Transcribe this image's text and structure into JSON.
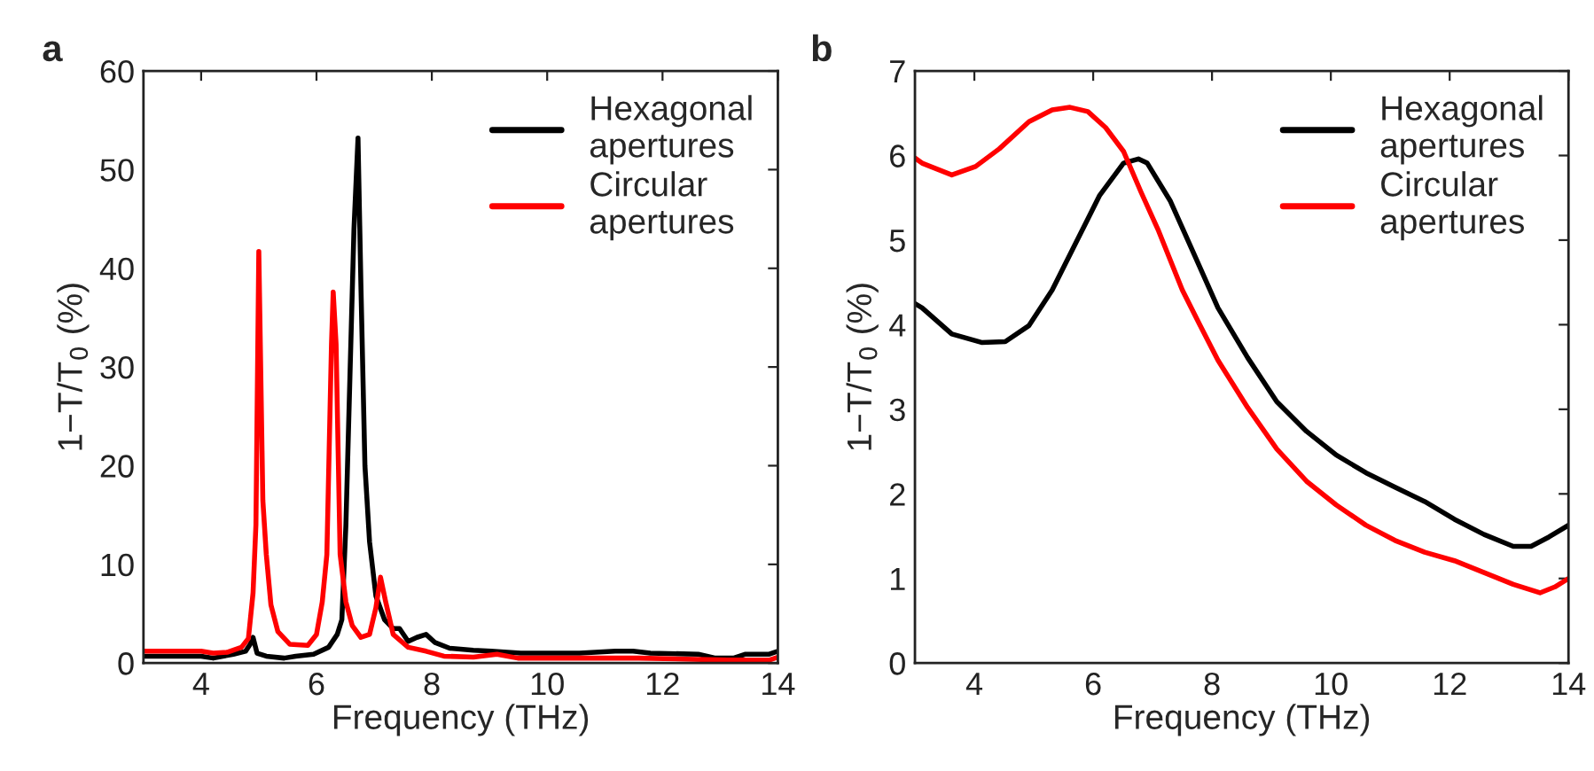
{
  "chart_data": [
    {
      "type": "line",
      "title": "a",
      "xlabel": "Frequency (THz)",
      "ylabel": "1−T/T$_{0}$ (%)",
      "xlim": [
        3,
        14
      ],
      "xticks": [
        4,
        6,
        8,
        10,
        12,
        14
      ],
      "ylim": [
        0,
        60
      ],
      "yticks": [
        0,
        10,
        20,
        30,
        40,
        50,
        60
      ],
      "grid": false,
      "legend": "top right",
      "line_style": "solid",
      "marker": "none",
      "series": [
        {
          "name": "Hexagonal\napertures",
          "color": "#000000",
          "x": [
            3.0,
            4.0,
            4.21,
            4.56,
            4.77,
            4.85,
            4.9,
            4.97,
            5.13,
            5.44,
            5.64,
            5.95,
            6.21,
            6.36,
            6.44,
            6.51,
            6.58,
            6.65,
            6.72,
            6.77,
            6.84,
            6.92,
            7.03,
            7.18,
            7.33,
            7.44,
            7.59,
            7.74,
            7.9,
            8.05,
            8.31,
            8.72,
            9.03,
            9.54,
            10.56,
            11.18,
            11.49,
            11.79,
            12.62,
            12.92,
            13.23,
            13.44,
            13.85,
            14.0
          ],
          "values": [
            0.7,
            0.7,
            0.5,
            0.9,
            1.2,
            1.9,
            2.6,
            1.0,
            0.7,
            0.5,
            0.7,
            0.9,
            1.6,
            2.9,
            4.4,
            14,
            29,
            44,
            53.2,
            38.4,
            20,
            12.3,
            6.8,
            4.4,
            3.5,
            3.5,
            2.2,
            2.6,
            2.9,
            2.1,
            1.5,
            1.3,
            1.2,
            1.0,
            1.0,
            1.2,
            1.2,
            1.0,
            0.9,
            0.5,
            0.5,
            0.9,
            0.9,
            1.2
          ]
        },
        {
          "name": "Circular\napertures",
          "color": "#ff0000",
          "x": [
            3.0,
            4.0,
            4.21,
            4.46,
            4.7,
            4.82,
            4.9,
            4.95,
            5.0,
            5.07,
            5.13,
            5.21,
            5.33,
            5.54,
            5.85,
            6.0,
            6.1,
            6.18,
            6.26,
            6.29,
            6.34,
            6.41,
            6.51,
            6.62,
            6.77,
            6.92,
            7.03,
            7.11,
            7.2,
            7.33,
            7.59,
            7.9,
            8.21,
            8.72,
            9.13,
            9.49,
            10.05,
            11.59,
            13.13,
            13.85,
            14.0
          ],
          "values": [
            1.2,
            1.2,
            1.0,
            1.1,
            1.6,
            2.5,
            7.1,
            14,
            41.7,
            16.5,
            11,
            5.9,
            3.2,
            1.9,
            1.8,
            2.9,
            6.2,
            11,
            32.3,
            37.6,
            32.3,
            11,
            6.2,
            3.8,
            2.6,
            2.9,
            5.6,
            8.7,
            6.2,
            2.9,
            1.6,
            1.2,
            0.7,
            0.6,
            0.9,
            0.5,
            0.5,
            0.5,
            0.3,
            0.3,
            0.6
          ]
        }
      ]
    },
    {
      "type": "line",
      "title": "b",
      "xlabel": "Frequency (THz)",
      "ylabel": "1−T/T$_{0}$ (%)",
      "xlim": [
        3,
        14
      ],
      "xticks": [
        4,
        6,
        8,
        10,
        12,
        14
      ],
      "ylim": [
        0,
        7
      ],
      "yticks": [
        0,
        1,
        2,
        3,
        4,
        5,
        6,
        7
      ],
      "grid": false,
      "legend": "top right",
      "line_style": "solid",
      "marker": "none",
      "series": [
        {
          "name": "Hexagonal\napertures",
          "color": "#000000",
          "x": [
            3.0,
            3.12,
            3.62,
            4.12,
            4.52,
            4.92,
            5.31,
            5.71,
            6.11,
            6.51,
            6.76,
            6.91,
            7.3,
            7.7,
            8.1,
            8.6,
            9.09,
            9.59,
            10.09,
            10.59,
            11.08,
            11.58,
            12.08,
            12.58,
            13.07,
            13.37,
            13.67,
            14.0
          ],
          "values": [
            4.25,
            4.2,
            3.89,
            3.79,
            3.8,
            3.99,
            4.41,
            4.97,
            5.53,
            5.91,
            5.96,
            5.91,
            5.46,
            4.83,
            4.2,
            3.61,
            3.09,
            2.74,
            2.46,
            2.25,
            2.08,
            1.91,
            1.7,
            1.52,
            1.38,
            1.38,
            1.49,
            1.63
          ]
        },
        {
          "name": "Circular\napertures",
          "color": "#ff0000",
          "x": [
            3.0,
            3.12,
            3.62,
            4.02,
            4.42,
            4.92,
            5.31,
            5.61,
            5.91,
            6.21,
            6.51,
            6.81,
            7.1,
            7.5,
            7.8,
            8.1,
            8.6,
            9.09,
            9.59,
            10.09,
            10.59,
            11.08,
            11.58,
            12.08,
            12.58,
            13.07,
            13.52,
            13.77,
            14.0
          ],
          "values": [
            5.97,
            5.91,
            5.77,
            5.87,
            6.08,
            6.4,
            6.54,
            6.57,
            6.52,
            6.33,
            6.05,
            5.56,
            5.11,
            4.41,
            3.99,
            3.58,
            3.02,
            2.53,
            2.15,
            1.87,
            1.63,
            1.45,
            1.31,
            1.21,
            1.07,
            0.93,
            0.83,
            0.9,
            1.0
          ]
        }
      ]
    }
  ]
}
